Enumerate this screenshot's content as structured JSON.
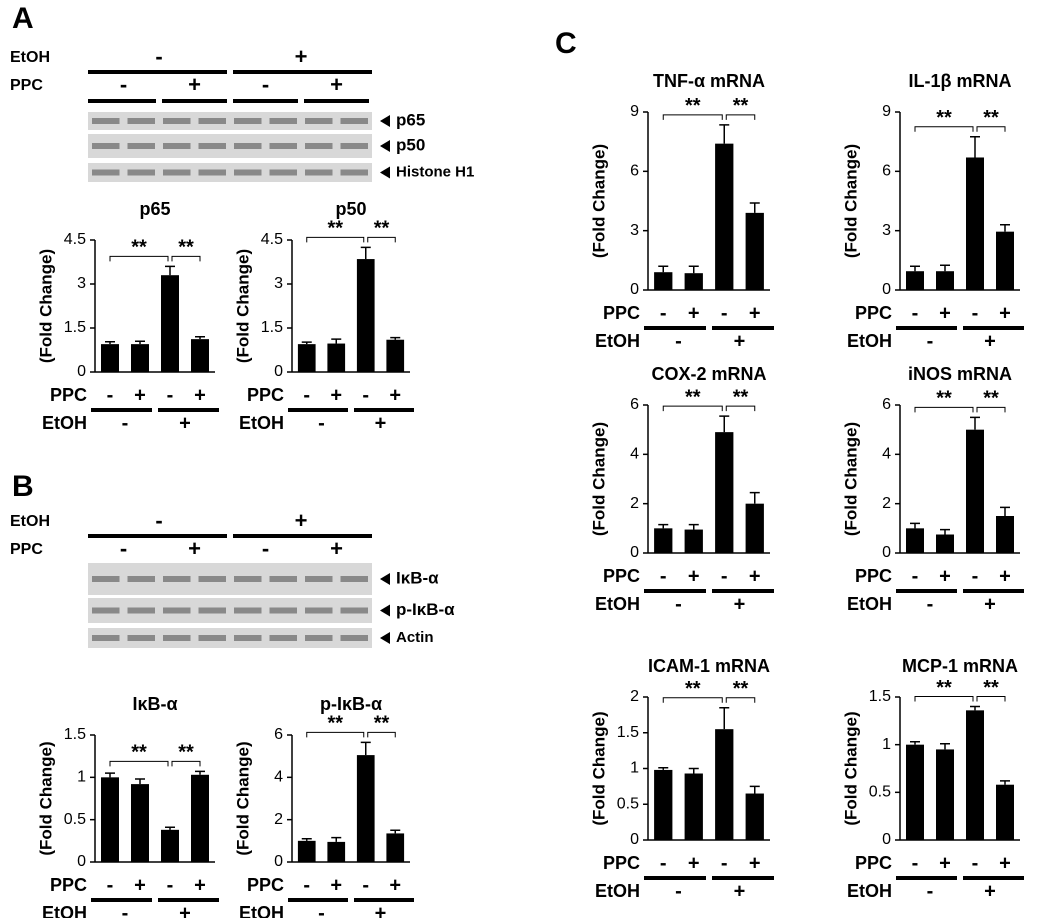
{
  "panels": [
    {
      "letter": "A",
      "blot": {
        "etoh": {
          "label": "EtOH",
          "signs": [
            "-",
            "+"
          ]
        },
        "ppc": {
          "label": "PPC",
          "signs": [
            "-",
            "+",
            "-",
            "+"
          ]
        },
        "bands": [
          "p65",
          "p50",
          "Histone H1"
        ]
      }
    },
    {
      "letter": "B",
      "blot": {
        "etoh": {
          "label": "EtOH",
          "signs": [
            "-",
            "+"
          ]
        },
        "ppc": {
          "label": "PPC",
          "signs": [
            "-",
            "+",
            "-",
            "+"
          ]
        },
        "bands": [
          "IκB-α",
          "p-IκB-α",
          "Actin"
        ]
      }
    },
    {
      "letter": "C"
    }
  ],
  "chart_data": [
    {
      "type": "bar",
      "title": "p65",
      "y_label": "(Fold Change)",
      "color": "#000000",
      "values": [
        0.95,
        0.95,
        3.3,
        1.12
      ],
      "errors": [
        0.08,
        0.1,
        0.3,
        0.08
      ],
      "ylim": [
        0,
        4.5
      ],
      "yticks": [
        0,
        1.5,
        3,
        4.5
      ],
      "significance": [
        "**",
        "**"
      ],
      "ppc": {
        "label": "PPC",
        "signs": [
          "-",
          "+",
          "-",
          "+"
        ]
      },
      "etoh": {
        "label": "EtOH",
        "signs": [
          "-",
          "+"
        ]
      }
    },
    {
      "type": "bar",
      "title": "p50",
      "y_label": "(Fold Change)",
      "color": "#000000",
      "values": [
        0.95,
        0.97,
        3.85,
        1.1
      ],
      "errors": [
        0.07,
        0.15,
        0.4,
        0.07
      ],
      "ylim": [
        0,
        4.5
      ],
      "yticks": [
        0,
        1.5,
        3,
        4.5
      ],
      "significance": [
        "**",
        "**"
      ],
      "ppc": {
        "label": "PPC",
        "signs": [
          "-",
          "+",
          "-",
          "+"
        ]
      },
      "etoh": {
        "label": "EtOH",
        "signs": [
          "-",
          "+"
        ]
      }
    },
    {
      "type": "bar",
      "title": "IκB-α",
      "y_label": "(Fold Change)",
      "color": "#000000",
      "values": [
        1.0,
        0.92,
        0.38,
        1.03
      ],
      "errors": [
        0.05,
        0.06,
        0.03,
        0.04
      ],
      "ylim": [
        0,
        1.5
      ],
      "yticks": [
        0,
        0.5,
        1,
        1.5
      ],
      "significance": [
        "**",
        "**"
      ],
      "ppc": {
        "label": "PPC",
        "signs": [
          "-",
          "+",
          "-",
          "+"
        ]
      },
      "etoh": {
        "label": "EtOH",
        "signs": [
          "-",
          "+"
        ]
      }
    },
    {
      "type": "bar",
      "title": "p-IκB-α",
      "y_label": "(Fold Change)",
      "color": "#000000",
      "values": [
        1.0,
        0.95,
        5.05,
        1.35
      ],
      "errors": [
        0.1,
        0.2,
        0.6,
        0.15
      ],
      "ylim": [
        0,
        6
      ],
      "yticks": [
        0,
        2,
        4,
        6
      ],
      "significance": [
        "**",
        "**"
      ],
      "ppc": {
        "label": "PPC",
        "signs": [
          "-",
          "+",
          "-",
          "+"
        ]
      },
      "etoh": {
        "label": "EtOH",
        "signs": [
          "-",
          "+"
        ]
      }
    },
    {
      "type": "bar",
      "title": "TNF-α mRNA",
      "y_label": "(Fold Change)",
      "color": "#000000",
      "values": [
        0.9,
        0.85,
        7.4,
        3.9
      ],
      "errors": [
        0.3,
        0.35,
        0.95,
        0.5
      ],
      "ylim": [
        0,
        9
      ],
      "yticks": [
        0,
        3,
        6,
        9
      ],
      "significance": [
        "**",
        "**"
      ],
      "ppc": {
        "label": "PPC",
        "signs": [
          "-",
          "+",
          "-",
          "+"
        ]
      },
      "etoh": {
        "label": "EtOH",
        "signs": [
          "-",
          "+"
        ]
      }
    },
    {
      "type": "bar",
      "title": "IL-1β mRNA",
      "y_label": "(Fold Change)",
      "color": "#000000",
      "values": [
        0.95,
        0.95,
        6.7,
        2.95
      ],
      "errors": [
        0.25,
        0.3,
        1.05,
        0.35
      ],
      "ylim": [
        0,
        9
      ],
      "yticks": [
        0,
        3,
        6,
        9
      ],
      "significance": [
        "**",
        "**"
      ],
      "ppc": {
        "label": "PPC",
        "signs": [
          "-",
          "+",
          "-",
          "+"
        ]
      },
      "etoh": {
        "label": "EtOH",
        "signs": [
          "-",
          "+"
        ]
      }
    },
    {
      "type": "bar",
      "title": "COX-2 mRNA",
      "y_label": "(Fold Change)",
      "color": "#000000",
      "values": [
        1.0,
        0.95,
        4.9,
        2.0
      ],
      "errors": [
        0.15,
        0.2,
        0.65,
        0.45
      ],
      "ylim": [
        0,
        6
      ],
      "yticks": [
        0,
        2,
        4,
        6
      ],
      "significance": [
        "**",
        "**"
      ],
      "ppc": {
        "label": "PPC",
        "signs": [
          "-",
          "+",
          "-",
          "+"
        ]
      },
      "etoh": {
        "label": "EtOH",
        "signs": [
          "-",
          "+"
        ]
      }
    },
    {
      "type": "bar",
      "title": "iNOS mRNA",
      "y_label": "(Fold Change)",
      "color": "#000000",
      "values": [
        1.0,
        0.75,
        5.0,
        1.5
      ],
      "errors": [
        0.2,
        0.2,
        0.5,
        0.35
      ],
      "ylim": [
        0,
        6
      ],
      "yticks": [
        0,
        2,
        4,
        6
      ],
      "significance": [
        "**",
        "**"
      ],
      "ppc": {
        "label": "PPC",
        "signs": [
          "-",
          "+",
          "-",
          "+"
        ]
      },
      "etoh": {
        "label": "EtOH",
        "signs": [
          "-",
          "+"
        ]
      }
    },
    {
      "type": "bar",
      "title": "ICAM-1 mRNA",
      "y_label": "(Fold Change)",
      "color": "#000000",
      "values": [
        0.98,
        0.93,
        1.55,
        0.65
      ],
      "errors": [
        0.03,
        0.07,
        0.3,
        0.1
      ],
      "ylim": [
        0,
        2
      ],
      "yticks": [
        0,
        0.5,
        1,
        1.5,
        2
      ],
      "significance": [
        "**",
        "**"
      ],
      "ppc": {
        "label": "PPC",
        "signs": [
          "-",
          "+",
          "-",
          "+"
        ]
      },
      "etoh": {
        "label": "EtOH",
        "signs": [
          "-",
          "+"
        ]
      }
    },
    {
      "type": "bar",
      "title": "MCP-1 mRNA",
      "y_label": "(Fold Change)",
      "color": "#000000",
      "values": [
        1.0,
        0.95,
        1.36,
        0.58
      ],
      "errors": [
        0.03,
        0.06,
        0.04,
        0.04
      ],
      "ylim": [
        0,
        1.5
      ],
      "yticks": [
        0,
        0.5,
        1,
        1.5
      ],
      "significance": [
        "**",
        "**"
      ],
      "ppc": {
        "label": "PPC",
        "signs": [
          "-",
          "+",
          "-",
          "+"
        ]
      },
      "etoh": {
        "label": "EtOH",
        "signs": [
          "-",
          "+"
        ]
      }
    }
  ]
}
